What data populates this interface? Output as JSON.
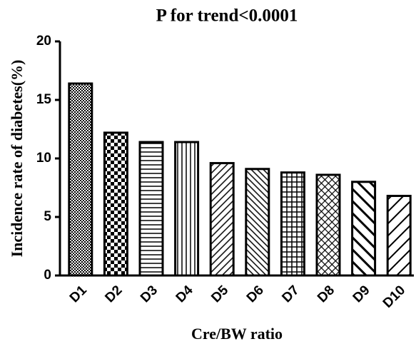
{
  "chart_data": {
    "type": "bar",
    "title": "P for trend<0.0001",
    "x_label": "Cre/BW ratio",
    "y_label": "Incidence rate of diabetes(%)",
    "categories": [
      "D1",
      "D2",
      "D3",
      "D4",
      "D5",
      "D6",
      "D7",
      "D8",
      "D9",
      "D10"
    ],
    "values": [
      16.4,
      12.2,
      11.4,
      11.4,
      9.6,
      9.1,
      8.8,
      8.6,
      8.0,
      6.8
    ],
    "color": "#000000",
    "ylim": [
      0,
      20
    ],
    "yticks": [
      0,
      5,
      10,
      15,
      20
    ],
    "grid": false
  }
}
